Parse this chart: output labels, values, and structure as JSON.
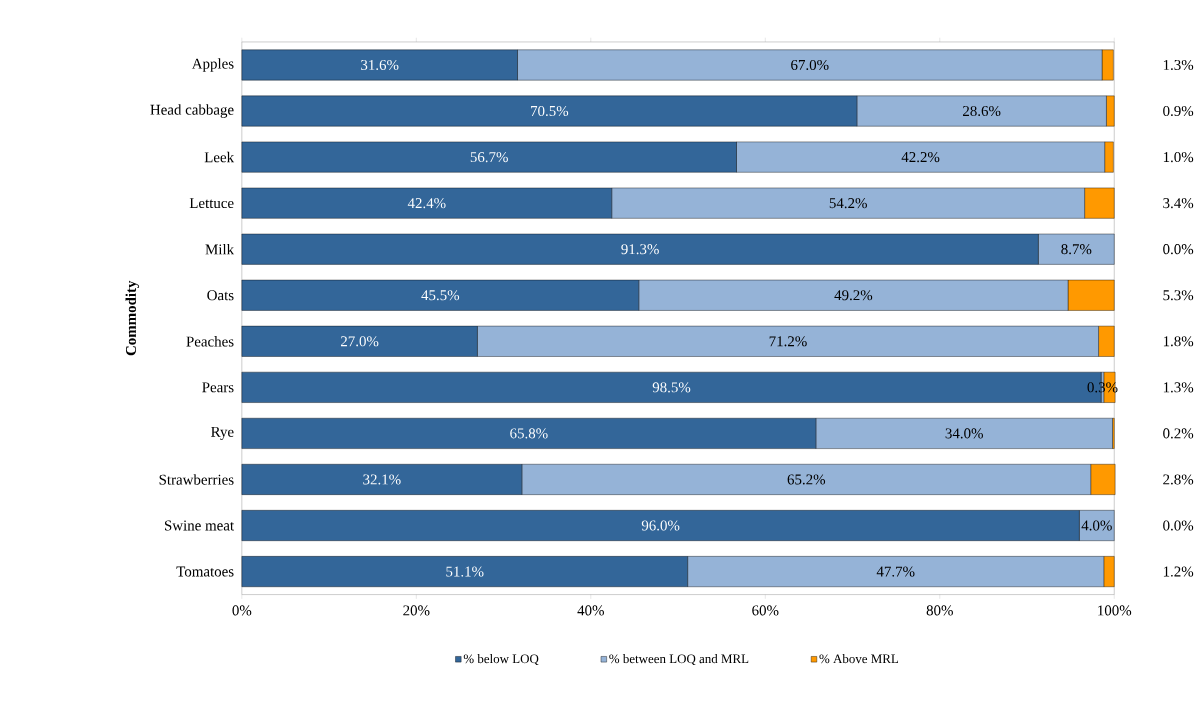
{
  "chart_data": {
    "type": "bar",
    "orientation": "horizontal",
    "stacked": true,
    "ylabel": "Commodity",
    "categories": [
      "Apples",
      "Head cabbage",
      "Leek",
      "Lettuce",
      "Milk",
      "Oats",
      "Peaches",
      "Pears",
      "Rye",
      "Strawberries",
      "Swine meat",
      "Tomatoes"
    ],
    "series": [
      {
        "name": "% below LOQ",
        "color": "#336699",
        "values": [
          31.6,
          70.5,
          56.7,
          42.4,
          91.3,
          45.5,
          27.0,
          98.5,
          65.8,
          32.1,
          96.0,
          51.1
        ],
        "value_labels": [
          "31.6%",
          "70.5%",
          "56.7%",
          "42.4%",
          "91.3%",
          "45.5%",
          "27.0%",
          "98.5%",
          "65.8%",
          "32.1%",
          "96.0%",
          "51.1%"
        ]
      },
      {
        "name": "% between LOQ and MRL",
        "color": "#95b3d7",
        "values": [
          67.0,
          28.6,
          42.2,
          54.2,
          8.7,
          49.2,
          71.2,
          0.3,
          34.0,
          65.2,
          4.0,
          47.7
        ],
        "value_labels": [
          "67.0%",
          "28.6%",
          "42.2%",
          "54.2%",
          "8.7%",
          "49.2%",
          "71.2%",
          "0.3%",
          "34.0%",
          "65.2%",
          "4.0%",
          "47.7%"
        ]
      },
      {
        "name": "% Above MRL",
        "color": "#ff9900",
        "values": [
          1.3,
          0.9,
          1.0,
          3.4,
          0.0,
          5.3,
          1.8,
          1.3,
          0.2,
          2.8,
          0.0,
          1.2
        ],
        "value_labels": [
          "1.3%",
          "0.9%",
          "1.0%",
          "3.4%",
          "0.0%",
          "5.3%",
          "1.8%",
          "1.3%",
          "0.2%",
          "2.8%",
          "0.0%",
          "1.2%"
        ]
      }
    ],
    "xlim": [
      0,
      100
    ],
    "xticks": [
      {
        "value": 0,
        "label": "0%"
      },
      {
        "value": 20,
        "label": "20%"
      },
      {
        "value": 40,
        "label": "40%"
      },
      {
        "value": 60,
        "label": "60%"
      },
      {
        "value": 80,
        "label": "80%"
      },
      {
        "value": 100,
        "label": "100%"
      }
    ],
    "legend": "bottom",
    "grid": false
  }
}
